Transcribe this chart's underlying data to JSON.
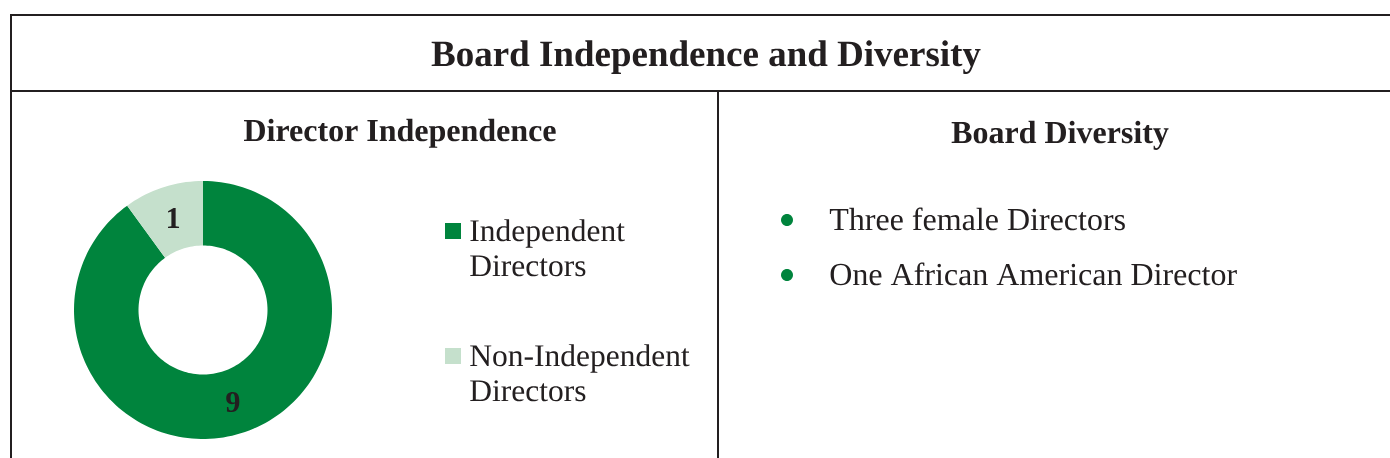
{
  "chart_data": [
    {
      "type": "other",
      "title": "Board Independence and Diversity"
    },
    {
      "type": "donut",
      "title": "Director Independence",
      "categories": [
        "Independent Directors",
        "Non-Independent Directors"
      ],
      "values": [
        9,
        1
      ],
      "colors": [
        "#00843d",
        "#c5e0cc"
      ],
      "data_labels": true,
      "legend": "right"
    },
    {
      "type": "other",
      "title": "Board Diversity",
      "annotations": [
        "Three female Directors",
        "One African American Director"
      ]
    }
  ]
}
